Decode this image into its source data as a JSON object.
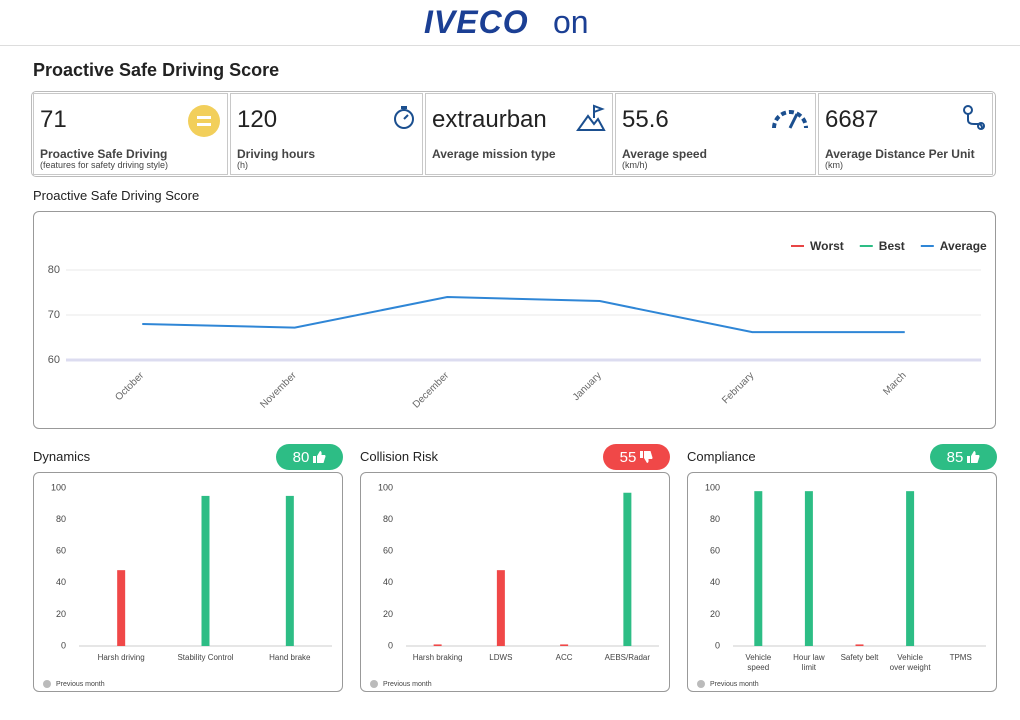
{
  "logo": "IVECO",
  "logo_suffix": "on",
  "title": "Proactive Safe Driving Score",
  "kpis": [
    {
      "value": 71,
      "label": "Proactive Safe Driving",
      "sublabel": "(features for safety driving style)"
    },
    {
      "value": 120,
      "label": "Driving hours",
      "sublabel": "(h)"
    },
    {
      "value": "extraurban",
      "label": "Average mission type"
    },
    {
      "value": 55.6,
      "label": "Average speed",
      "sublabel": "(km/h)"
    },
    {
      "value": 6687,
      "label": "Average Distance Per Unit",
      "sublabel": "(km)"
    }
  ],
  "chart_data": [
    {
      "type": "line",
      "title": "Proactive Safe Driving Score",
      "categories": [
        "October",
        "November",
        "December",
        "January",
        "February",
        "March"
      ],
      "series": [
        {
          "name": "Worst",
          "color": "#e84545",
          "values": [
            null,
            null,
            null,
            null,
            null,
            null
          ]
        },
        {
          "name": "Best",
          "color": "#2dbd85",
          "values": [
            null,
            null,
            null,
            null,
            null,
            null
          ]
        },
        {
          "name": "Average",
          "color": "#2f86d6",
          "values": [
            68,
            67.2,
            74,
            73.1,
            66.2,
            66.2
          ]
        }
      ],
      "ylim": [
        60,
        80
      ],
      "yticks": [
        60,
        70,
        80
      ],
      "grid": true,
      "legend": "top-right"
    },
    {
      "type": "bar",
      "title": "Dynamics",
      "score": 80,
      "badge_color": "#2dbd85",
      "badge_icon": "up",
      "categories": [
        "Harsh driving",
        "Stability Control",
        "Hand brake"
      ],
      "values": [
        48,
        95,
        95
      ],
      "colors": [
        "#f04848",
        "#2dbd85",
        "#2dbd85"
      ],
      "ylim": [
        0,
        100
      ],
      "yticks": [
        0,
        20,
        40,
        60,
        80,
        100
      ],
      "legend_label": "Previous month"
    },
    {
      "type": "bar",
      "title": "Collision Risk",
      "score": 55,
      "badge_color": "#f04848",
      "badge_icon": "down",
      "categories": [
        "Harsh braking",
        "LDWS",
        "ACC",
        "AEBS/Radar"
      ],
      "values": [
        1,
        48,
        1,
        97
      ],
      "colors": [
        "#f04848",
        "#f04848",
        "#f04848",
        "#2dbd85"
      ],
      "ylim": [
        0,
        100
      ],
      "yticks": [
        0,
        20,
        40,
        60,
        80,
        100
      ],
      "legend_label": "Previous month"
    },
    {
      "type": "bar",
      "title": "Compliance",
      "score": 85,
      "badge_color": "#2dbd85",
      "badge_icon": "up",
      "categories": [
        "Vehicle speed",
        "Hour law limit",
        "Safety belt",
        "Vehicle over weight",
        "TPMS"
      ],
      "values": [
        98,
        98,
        1,
        98,
        0
      ],
      "colors": [
        "#2dbd85",
        "#2dbd85",
        "#f04848",
        "#2dbd85",
        "#2dbd85"
      ],
      "ylim": [
        0,
        100
      ],
      "yticks": [
        0,
        20,
        40,
        60,
        80,
        100
      ],
      "legend_label": "Previous month"
    }
  ]
}
